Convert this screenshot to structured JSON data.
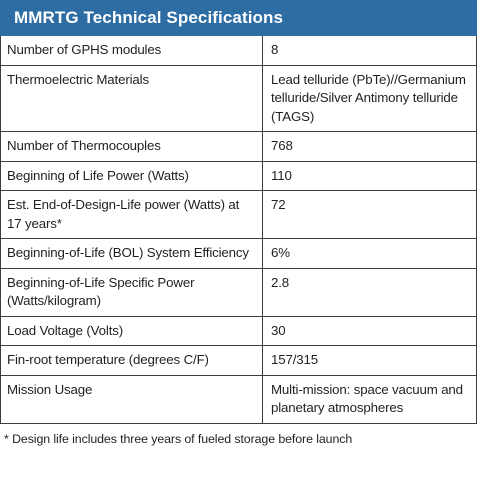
{
  "table": {
    "title": "MMRTG Technical Specifications",
    "rows": [
      {
        "label": "Number of GPHS modules",
        "value": "8"
      },
      {
        "label": "Thermoelectric Materials",
        "value": "Lead telluride (PbTe)//Germanium telluride/Silver Antimony telluride (TAGS)"
      },
      {
        "label": "Number of Thermocouples",
        "value": "768"
      },
      {
        "label": "Beginning of Life Power (Watts)",
        "value": "110"
      },
      {
        "label": "Est. End-of-Design-Life power (Watts) at 17 years*",
        "value": "72"
      },
      {
        "label": "Beginning-of-Life (BOL) System Efficiency",
        "value": "6%"
      },
      {
        "label": "Beginning-of-Life Specific Power (Watts/kilogram)",
        "value": "2.8"
      },
      {
        "label": "Load Voltage (Volts)",
        "value": "30"
      },
      {
        "label": "Fin-root temperature (degrees C/F)",
        "value": "157/315"
      },
      {
        "label": "Mission Usage",
        "value": "Multi-mission: space vacuum and planetary atmospheres"
      }
    ],
    "footnote": "* Design life includes three years of fueled storage before launch"
  },
  "colors": {
    "header_background": "#2e6ca4",
    "header_text": "#ffffff",
    "body_text": "#231f20",
    "rule": "#3d3d3d"
  }
}
